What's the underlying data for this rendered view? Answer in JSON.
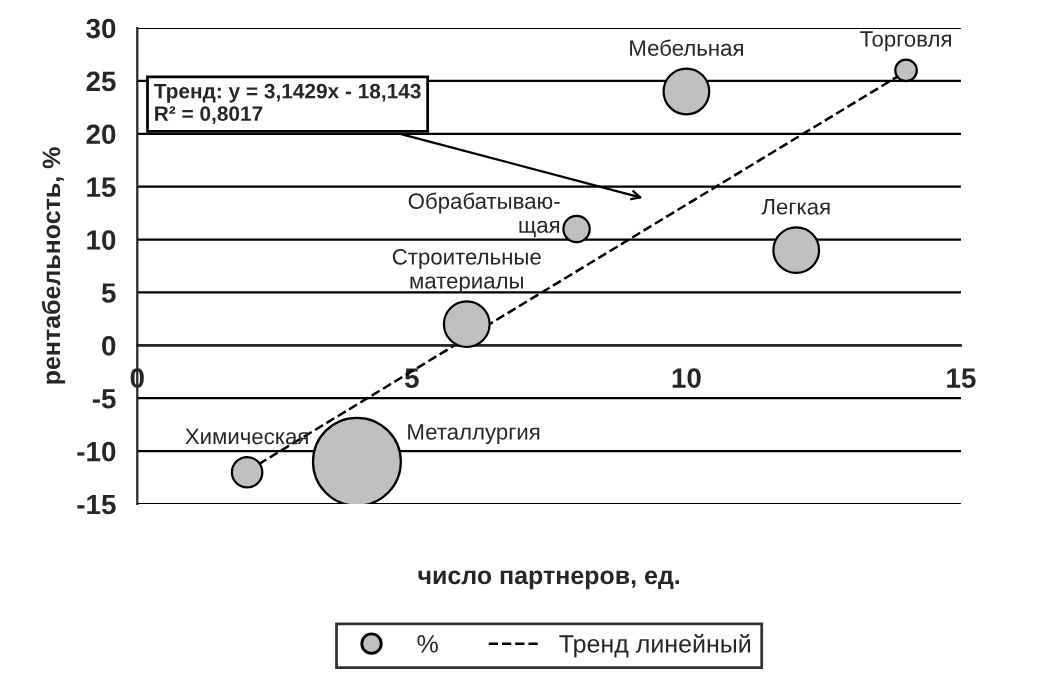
{
  "chart_data": {
    "type": "bubble",
    "xlabel": "число партнеров, ед.",
    "ylabel": "рентабельность, %",
    "xlim": [
      0,
      15
    ],
    "xticks": [
      0,
      5,
      10,
      15
    ],
    "ylim": [
      -15,
      30
    ],
    "yticks": [
      -15,
      -10,
      -5,
      0,
      5,
      10,
      15,
      20,
      25,
      30
    ],
    "grid": "y",
    "legend": "bottom",
    "series": [
      {
        "name": "%",
        "color": "#c0c0c0",
        "x": [
          2,
          4,
          6,
          8,
          10,
          12,
          14
        ],
        "values": [
          -12,
          -11,
          2,
          11,
          24,
          9,
          26
        ],
        "sizes": [
          0.12,
          1,
          0.27,
          0.09,
          0.27,
          0.27,
          0.06
        ]
      },
      {
        "name": "Тренд линейный",
        "type": "line",
        "color": "#000000",
        "line_style": "dashed",
        "x": [
          2,
          14
        ],
        "values": [
          -11.9,
          25.9
        ]
      }
    ],
    "annotations": [
      {
        "text": "Химическая",
        "x": 2,
        "y": -12
      },
      {
        "text": "Металлургия",
        "x": 4,
        "y": -11
      },
      {
        "text": "Строительные\nматериалы",
        "x": 6,
        "y": 2
      },
      {
        "text": "Обрабатываю-\nщая",
        "x": 8,
        "y": 11
      },
      {
        "text": "Мебельная",
        "x": 10,
        "y": 24
      },
      {
        "text": "Легкая",
        "x": 12,
        "y": 9
      },
      {
        "text": "Торговля",
        "x": 14,
        "y": 26
      },
      "Тренд: y = 3,1429x - 18,143\nR² = 0,8017"
    ]
  }
}
